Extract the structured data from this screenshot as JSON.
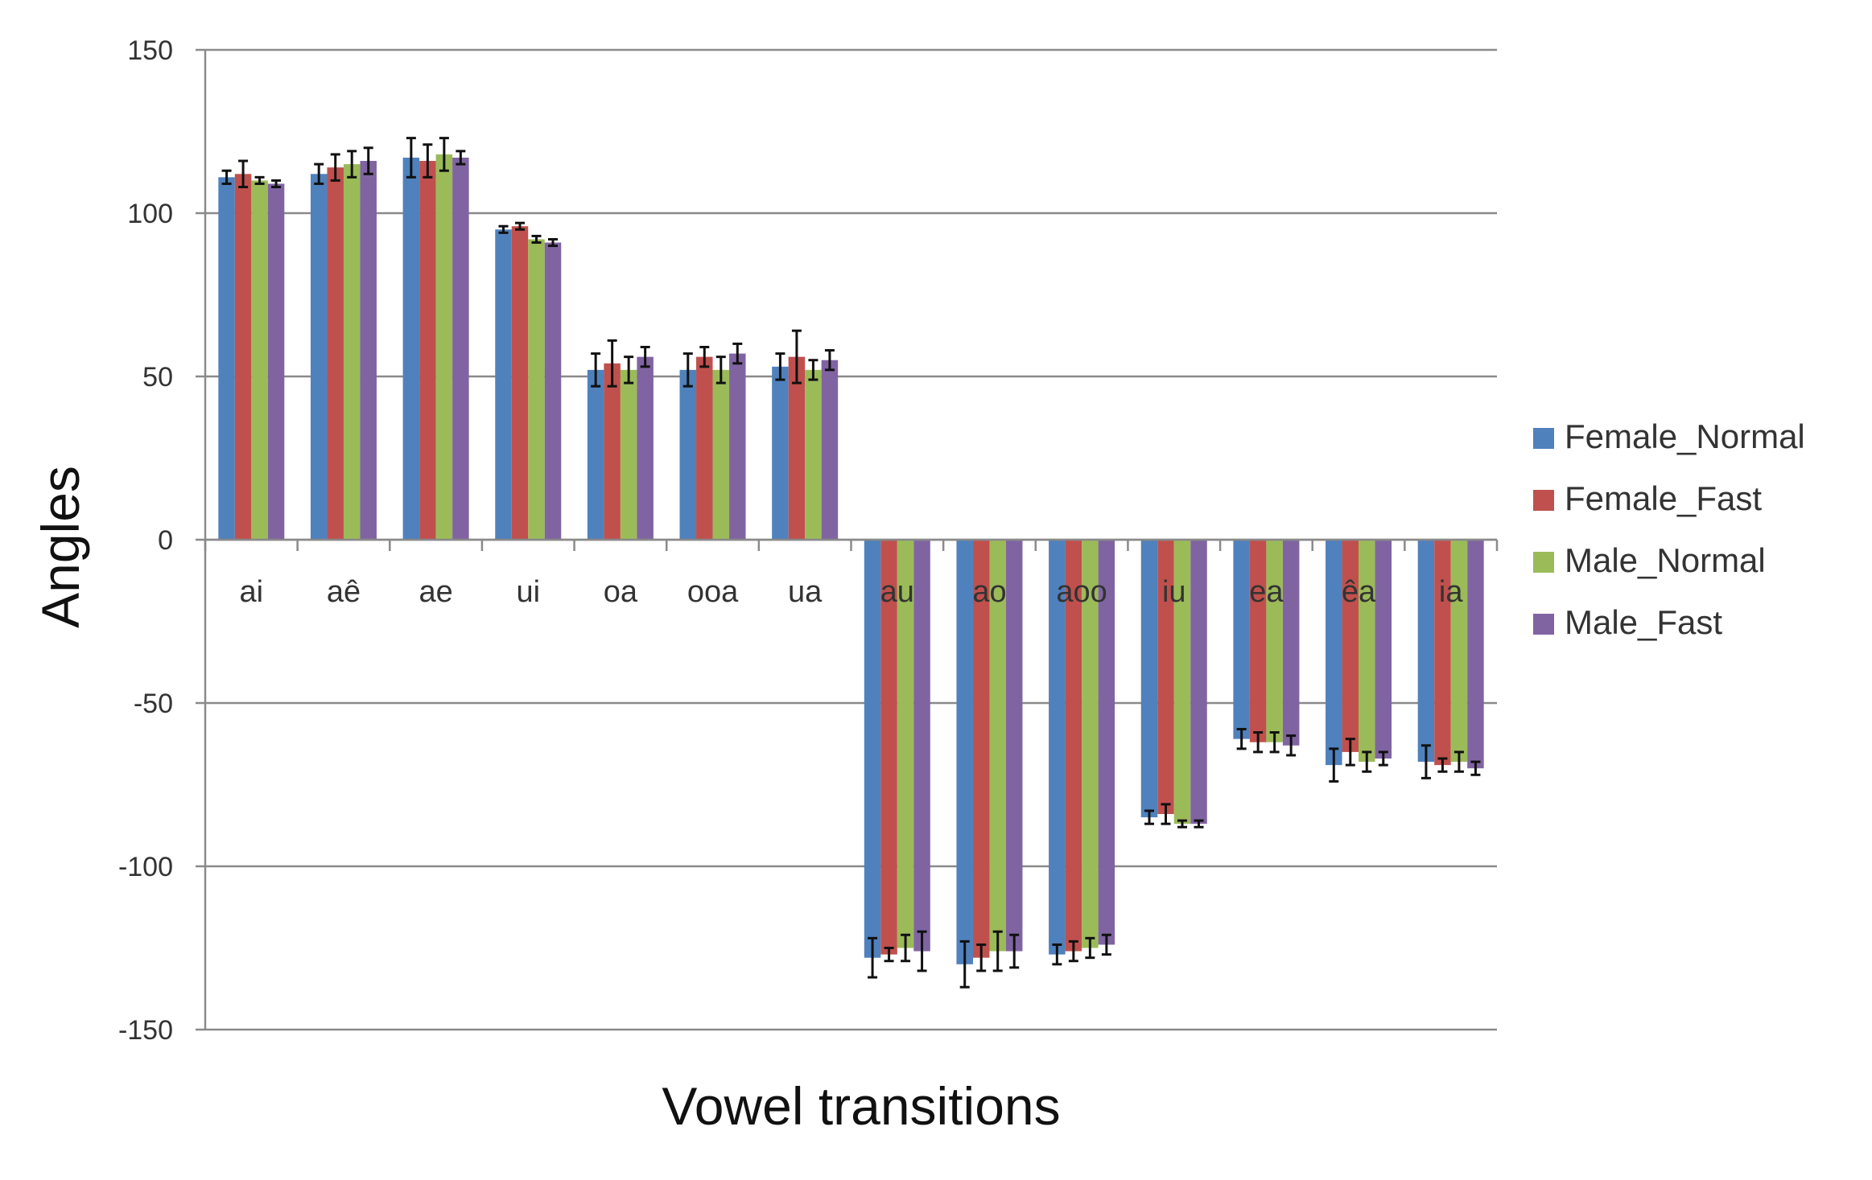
{
  "chart_data": {
    "type": "bar",
    "xlabel": "Vowel transitions",
    "ylabel": "Angles",
    "ylim": [
      -150,
      150
    ],
    "yticks": [
      150,
      100,
      50,
      0,
      -50,
      -100,
      -150
    ],
    "grid": true,
    "legend_position": "right",
    "categories": [
      "ai",
      "aê",
      "ae",
      "ui",
      "oa",
      "ooa",
      "ua",
      "au",
      "ao",
      "aoo",
      "iu",
      "ea",
      "êa",
      "ia"
    ],
    "series": [
      {
        "name": "Female_Normal",
        "color": "#4F81BD",
        "values": [
          111,
          112,
          117,
          95,
          52,
          52,
          53,
          -128,
          -130,
          -127,
          -85,
          -61,
          -69,
          -68
        ],
        "errors": [
          2,
          3,
          6,
          1,
          5,
          5,
          4,
          6,
          7,
          3,
          2,
          3,
          5,
          5
        ]
      },
      {
        "name": "Female_Fast",
        "color": "#C0504D",
        "values": [
          112,
          114,
          116,
          96,
          54,
          56,
          56,
          -127,
          -128,
          -126,
          -84,
          -62,
          -65,
          -69
        ],
        "errors": [
          4,
          4,
          5,
          1,
          7,
          3,
          8,
          2,
          4,
          3,
          3,
          3,
          4,
          2
        ]
      },
      {
        "name": "Male_Normal",
        "color": "#9BBB59",
        "values": [
          110,
          115,
          118,
          92,
          52,
          52,
          52,
          -125,
          -126,
          -125,
          -87,
          -62,
          -68,
          -68
        ],
        "errors": [
          1,
          4,
          5,
          1,
          4,
          4,
          3,
          4,
          6,
          3,
          1,
          3,
          3,
          3
        ]
      },
      {
        "name": "Male_Fast",
        "color": "#8064A2",
        "values": [
          109,
          116,
          117,
          91,
          56,
          57,
          55,
          -126,
          -126,
          -124,
          -87,
          -63,
          -67,
          -70
        ],
        "errors": [
          1,
          4,
          2,
          1,
          3,
          3,
          3,
          6,
          5,
          3,
          1,
          3,
          2,
          2
        ]
      }
    ]
  }
}
